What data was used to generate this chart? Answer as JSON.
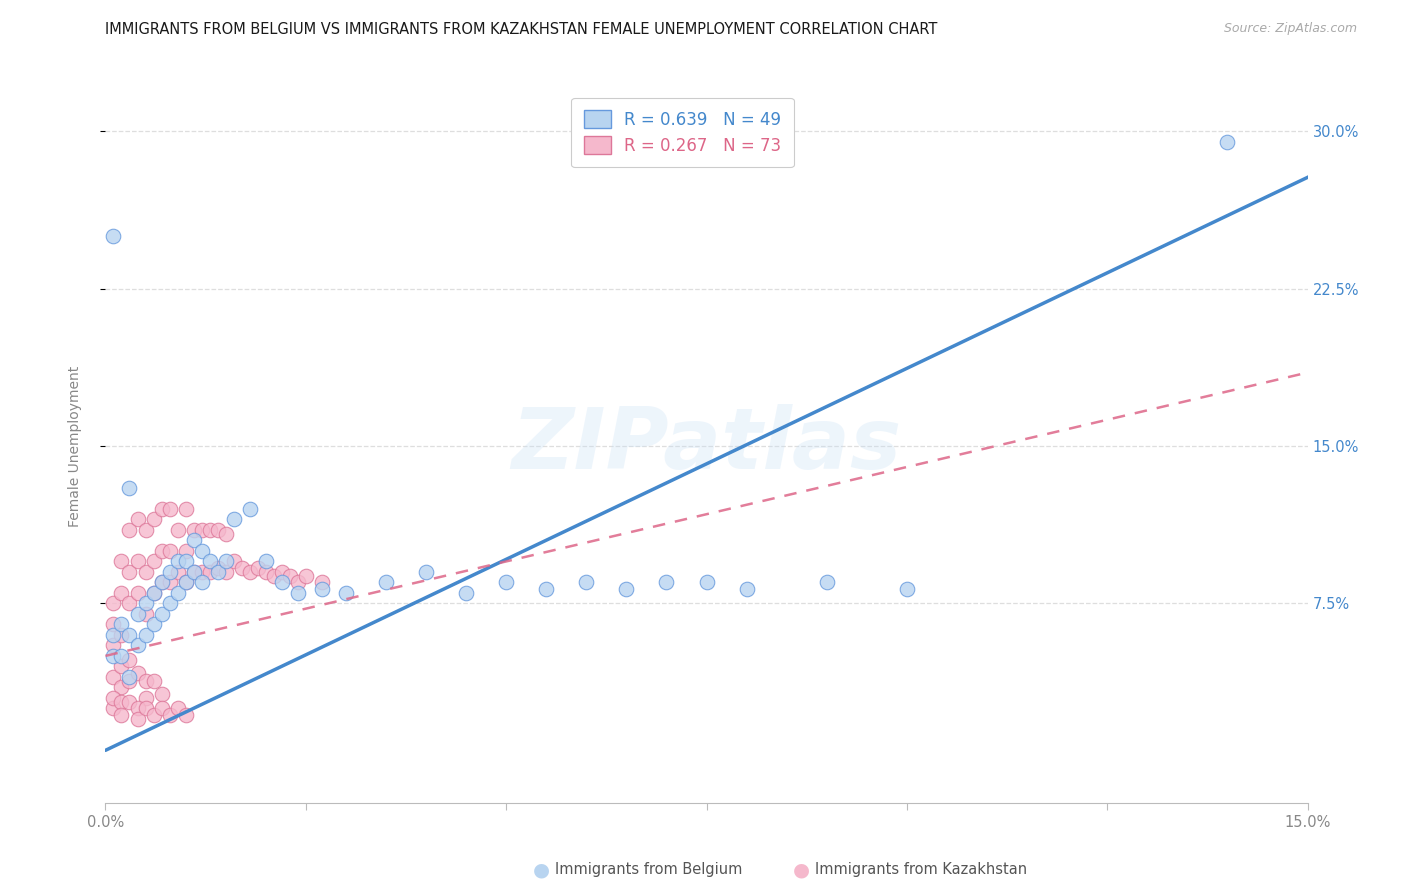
{
  "title": "IMMIGRANTS FROM BELGIUM VS IMMIGRANTS FROM KAZAKHSTAN FEMALE UNEMPLOYMENT CORRELATION CHART",
  "source": "Source: ZipAtlas.com",
  "ylabel": "Female Unemployment",
  "legend_labels": [
    "Immigrants from Belgium",
    "Immigrants from Kazakhstan"
  ],
  "legend_r_belgium": "R = 0.639",
  "legend_n_belgium": "N = 49",
  "legend_r_kazakhstan": "R = 0.267",
  "legend_n_kazakhstan": "N = 73",
  "belgium_color": "#b8d4f0",
  "kazakhstan_color": "#f5b8cc",
  "belgium_edge_color": "#6699dd",
  "kazakhstan_edge_color": "#dd7799",
  "belgium_line_color": "#4488cc",
  "kazakhstan_line_color": "#dd6688",
  "ytick_color": "#4488cc",
  "xlim": [
    0.0,
    0.15
  ],
  "ylim": [
    -0.02,
    0.32
  ],
  "ytick_vals": [
    0.075,
    0.15,
    0.225,
    0.3
  ],
  "ytick_labels": [
    "7.5%",
    "15.0%",
    "22.5%",
    "30.0%"
  ],
  "xtick_vals": [
    0.0,
    0.025,
    0.05,
    0.075,
    0.1,
    0.125,
    0.15
  ],
  "xtick_labels": [
    "0.0%",
    "",
    "",
    "",
    "",
    "",
    "15.0%"
  ],
  "watermark": "ZIPatlas",
  "bg_color": "#ffffff",
  "grid_color": "#dedede",
  "belgium_line_slope": 1.82,
  "belgium_line_intercept": 0.005,
  "kazakhstan_line_slope": 0.9,
  "kazakhstan_line_intercept": 0.05,
  "belgium_x": [
    0.001,
    0.001,
    0.002,
    0.002,
    0.003,
    0.003,
    0.004,
    0.004,
    0.005,
    0.005,
    0.006,
    0.006,
    0.007,
    0.007,
    0.008,
    0.008,
    0.009,
    0.009,
    0.01,
    0.01,
    0.011,
    0.011,
    0.012,
    0.012,
    0.013,
    0.014,
    0.015,
    0.016,
    0.018,
    0.02,
    0.022,
    0.024,
    0.027,
    0.03,
    0.035,
    0.04,
    0.045,
    0.05,
    0.055,
    0.06,
    0.065,
    0.07,
    0.075,
    0.08,
    0.09,
    0.1,
    0.001,
    0.14,
    0.003
  ],
  "belgium_y": [
    0.06,
    0.05,
    0.065,
    0.05,
    0.04,
    0.06,
    0.055,
    0.07,
    0.06,
    0.075,
    0.08,
    0.065,
    0.085,
    0.07,
    0.09,
    0.075,
    0.095,
    0.08,
    0.085,
    0.095,
    0.105,
    0.09,
    0.1,
    0.085,
    0.095,
    0.09,
    0.095,
    0.115,
    0.12,
    0.095,
    0.085,
    0.08,
    0.082,
    0.08,
    0.085,
    0.09,
    0.08,
    0.085,
    0.082,
    0.085,
    0.082,
    0.085,
    0.085,
    0.082,
    0.085,
    0.082,
    0.25,
    0.295,
    0.13
  ],
  "kazakhstan_x": [
    0.001,
    0.001,
    0.001,
    0.002,
    0.002,
    0.002,
    0.003,
    0.003,
    0.003,
    0.004,
    0.004,
    0.004,
    0.005,
    0.005,
    0.005,
    0.006,
    0.006,
    0.006,
    0.007,
    0.007,
    0.007,
    0.008,
    0.008,
    0.008,
    0.009,
    0.009,
    0.01,
    0.01,
    0.01,
    0.011,
    0.011,
    0.012,
    0.012,
    0.013,
    0.013,
    0.014,
    0.014,
    0.015,
    0.015,
    0.016,
    0.017,
    0.018,
    0.019,
    0.02,
    0.021,
    0.022,
    0.023,
    0.024,
    0.025,
    0.027,
    0.001,
    0.002,
    0.002,
    0.003,
    0.003,
    0.004,
    0.005,
    0.005,
    0.006,
    0.007,
    0.001,
    0.001,
    0.002,
    0.002,
    0.003,
    0.004,
    0.004,
    0.005,
    0.006,
    0.007,
    0.008,
    0.009,
    0.01
  ],
  "kazakhstan_y": [
    0.055,
    0.065,
    0.075,
    0.06,
    0.08,
    0.095,
    0.075,
    0.09,
    0.11,
    0.08,
    0.095,
    0.115,
    0.07,
    0.09,
    0.11,
    0.08,
    0.095,
    0.115,
    0.085,
    0.1,
    0.12,
    0.085,
    0.1,
    0.12,
    0.09,
    0.11,
    0.085,
    0.1,
    0.12,
    0.09,
    0.11,
    0.09,
    0.11,
    0.09,
    0.11,
    0.092,
    0.11,
    0.09,
    0.108,
    0.095,
    0.092,
    0.09,
    0.092,
    0.09,
    0.088,
    0.09,
    0.088,
    0.085,
    0.088,
    0.085,
    0.04,
    0.045,
    0.035,
    0.048,
    0.038,
    0.042,
    0.038,
    0.03,
    0.038,
    0.032,
    0.025,
    0.03,
    0.028,
    0.022,
    0.028,
    0.025,
    0.02,
    0.025,
    0.022,
    0.025,
    0.022,
    0.025,
    0.022
  ]
}
